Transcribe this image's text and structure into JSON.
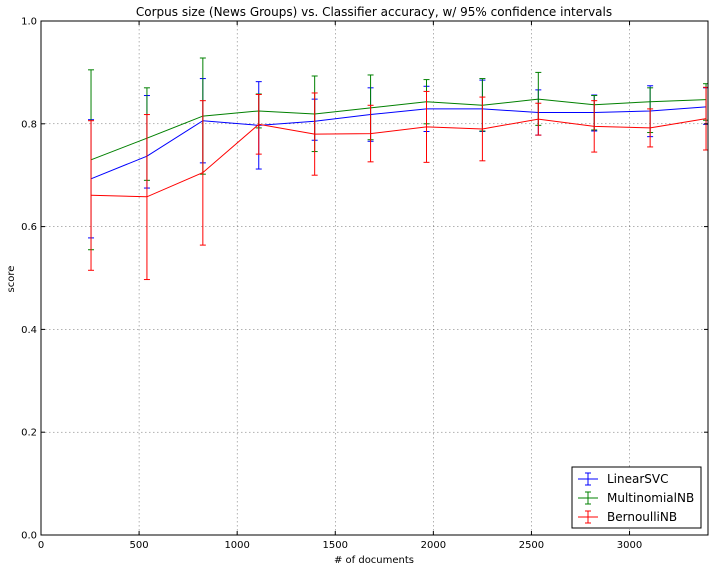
{
  "chart_data": {
    "type": "line",
    "title": "Corpus size (News Groups) vs. Classifier accuracy, w/ 95% confidence intervals",
    "xlabel": "# of documents",
    "ylabel": "score",
    "xlim": [
      0,
      3400
    ],
    "ylim": [
      0.0,
      1.0
    ],
    "x_ticks": [
      0,
      500,
      1000,
      1500,
      2000,
      2500,
      3000
    ],
    "y_ticks": [
      "0.0",
      "0.2",
      "0.4",
      "0.6",
      "0.8",
      "1.0"
    ],
    "grid": true,
    "legend_position": "bottom-right",
    "x": [
      255,
      540,
      825,
      1110,
      1395,
      1680,
      1965,
      2250,
      2535,
      2820,
      3105,
      3390
    ],
    "series": [
      {
        "name": "LinearSVC",
        "color": "#0000ff",
        "values": [
          0.693,
          0.737,
          0.806,
          0.797,
          0.805,
          0.818,
          0.829,
          0.829,
          0.822,
          0.822,
          0.825,
          0.833
        ],
        "lower": [
          0.578,
          0.675,
          0.724,
          0.712,
          0.768,
          0.766,
          0.785,
          0.785,
          0.778,
          0.786,
          0.775,
          0.799
        ],
        "upper": [
          0.808,
          0.855,
          0.888,
          0.882,
          0.848,
          0.87,
          0.873,
          0.885,
          0.866,
          0.856,
          0.874,
          0.87
        ]
      },
      {
        "name": "MultinomialNB",
        "color": "#008000",
        "values": [
          0.73,
          0.772,
          0.815,
          0.825,
          0.819,
          0.831,
          0.843,
          0.836,
          0.848,
          0.837,
          0.843,
          0.847
        ],
        "lower": [
          0.555,
          0.69,
          0.702,
          0.792,
          0.746,
          0.769,
          0.8,
          0.786,
          0.797,
          0.788,
          0.783,
          0.807
        ],
        "upper": [
          0.905,
          0.87,
          0.928,
          0.858,
          0.893,
          0.895,
          0.886,
          0.888,
          0.9,
          0.855,
          0.87,
          0.878
        ]
      },
      {
        "name": "BernoulliNB",
        "color": "#ff0000",
        "values": [
          0.661,
          0.658,
          0.705,
          0.799,
          0.78,
          0.781,
          0.794,
          0.79,
          0.809,
          0.795,
          0.792,
          0.81
        ],
        "lower": [
          0.515,
          0.497,
          0.564,
          0.741,
          0.7,
          0.726,
          0.725,
          0.728,
          0.778,
          0.745,
          0.755,
          0.749
        ],
        "upper": [
          0.806,
          0.818,
          0.845,
          0.857,
          0.86,
          0.836,
          0.863,
          0.852,
          0.84,
          0.845,
          0.829,
          0.871
        ]
      }
    ]
  }
}
